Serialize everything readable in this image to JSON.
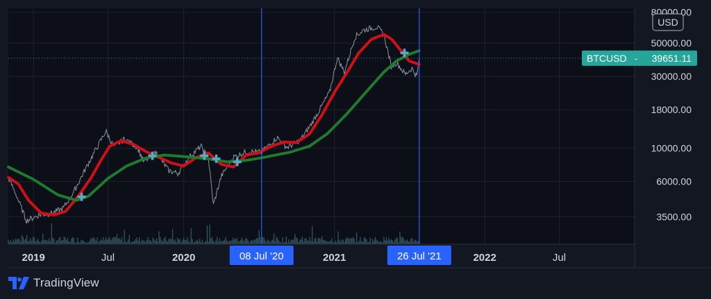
{
  "chart_data": {
    "type": "line",
    "y_scale": "log",
    "currency_label": "USD",
    "symbol": "BTCUSD",
    "last_price": 39651.11,
    "last_price_label": "39651.11",
    "ylim": [
      2300,
      85000
    ],
    "xlim": [
      "2018-11-01",
      "2022-12-31"
    ],
    "y_ticks": [
      {
        "value": 80000,
        "label": "80000.00"
      },
      {
        "value": 50000,
        "label": "50000.00"
      },
      {
        "value": 30000,
        "label": "30000.00"
      },
      {
        "value": 18000,
        "label": "18000.00"
      },
      {
        "value": 10000,
        "label": "10000.00"
      },
      {
        "value": 6000,
        "label": "6000.00"
      },
      {
        "value": 3500,
        "label": "3500.00"
      }
    ],
    "x_ticks": [
      {
        "date": "2019-01-01",
        "label": "2019",
        "bold": true
      },
      {
        "date": "2019-07-01",
        "label": "Jul",
        "bold": false
      },
      {
        "date": "2020-01-01",
        "label": "2020",
        "bold": true
      },
      {
        "date": "2021-01-01",
        "label": "2021",
        "bold": true
      },
      {
        "date": "2022-01-01",
        "label": "2022",
        "bold": true
      },
      {
        "date": "2022-07-01",
        "label": "Jul",
        "bold": false
      }
    ],
    "crosshair_lines": [
      {
        "date": "2020-07-08",
        "label": "08 Jul '20"
      },
      {
        "date": "2021-07-26",
        "label": "26 Jul '21"
      }
    ],
    "series": [
      {
        "kind": "price",
        "color": "#9aa3b0",
        "points": [
          [
            "2018-11-01",
            6400
          ],
          [
            "2018-11-20",
            4900
          ],
          [
            "2018-12-15",
            3300
          ],
          [
            "2019-01-15",
            3600
          ],
          [
            "2019-02-15",
            3700
          ],
          [
            "2019-03-15",
            4000
          ],
          [
            "2019-04-10",
            5200
          ],
          [
            "2019-05-15",
            8000
          ],
          [
            "2019-06-26",
            13000
          ],
          [
            "2019-07-15",
            10200
          ],
          [
            "2019-08-10",
            11500
          ],
          [
            "2019-09-10",
            10200
          ],
          [
            "2019-09-26",
            8100
          ],
          [
            "2019-10-26",
            9400
          ],
          [
            "2019-11-25",
            7100
          ],
          [
            "2019-12-18",
            6800
          ],
          [
            "2020-01-15",
            8800
          ],
          [
            "2020-02-12",
            10300
          ],
          [
            "2020-03-01",
            8500
          ],
          [
            "2020-03-13",
            4200
          ],
          [
            "2020-04-01",
            6500
          ],
          [
            "2020-04-30",
            8700
          ],
          [
            "2020-06-01",
            9500
          ],
          [
            "2020-07-08",
            9400
          ],
          [
            "2020-08-15",
            11800
          ],
          [
            "2020-09-08",
            10100
          ],
          [
            "2020-10-10",
            11300
          ],
          [
            "2020-11-01",
            13800
          ],
          [
            "2020-12-01",
            19000
          ],
          [
            "2020-12-20",
            23500
          ],
          [
            "2021-01-08",
            40000
          ],
          [
            "2021-01-25",
            32000
          ],
          [
            "2021-02-20",
            55000
          ],
          [
            "2021-03-13",
            61000
          ],
          [
            "2021-04-14",
            64000
          ],
          [
            "2021-05-01",
            57000
          ],
          [
            "2021-05-19",
            35000
          ],
          [
            "2021-06-01",
            37000
          ],
          [
            "2021-06-22",
            31000
          ],
          [
            "2021-07-08",
            34000
          ],
          [
            "2021-07-20",
            30000
          ],
          [
            "2021-07-26",
            39651
          ]
        ]
      },
      {
        "kind": "fast_ma",
        "color": "#d10f17",
        "points": [
          [
            "2018-11-01",
            6400
          ],
          [
            "2018-11-25",
            5800
          ],
          [
            "2018-12-20",
            4500
          ],
          [
            "2019-01-20",
            3700
          ],
          [
            "2019-02-20",
            3600
          ],
          [
            "2019-03-20",
            3800
          ],
          [
            "2019-04-20",
            4800
          ],
          [
            "2019-05-20",
            6300
          ],
          [
            "2019-06-15",
            8400
          ],
          [
            "2019-07-05",
            10300
          ],
          [
            "2019-08-01",
            11200
          ],
          [
            "2019-09-01",
            10600
          ],
          [
            "2019-10-01",
            9500
          ],
          [
            "2019-11-01",
            8700
          ],
          [
            "2019-12-01",
            8000
          ],
          [
            "2020-01-01",
            7600
          ],
          [
            "2020-02-01",
            8700
          ],
          [
            "2020-03-01",
            9300
          ],
          [
            "2020-04-01",
            7800
          ],
          [
            "2020-05-01",
            7500
          ],
          [
            "2020-06-01",
            9000
          ],
          [
            "2020-07-01",
            9300
          ],
          [
            "2020-08-01",
            10300
          ],
          [
            "2020-09-01",
            11000
          ],
          [
            "2020-10-01",
            10900
          ],
          [
            "2020-11-01",
            12400
          ],
          [
            "2020-12-01",
            16500
          ],
          [
            "2021-01-01",
            23500
          ],
          [
            "2021-02-01",
            32000
          ],
          [
            "2021-03-01",
            43000
          ],
          [
            "2021-04-01",
            53000
          ],
          [
            "2021-05-01",
            57000
          ],
          [
            "2021-05-20",
            53000
          ],
          [
            "2021-06-10",
            45000
          ],
          [
            "2021-07-01",
            38000
          ],
          [
            "2021-07-26",
            36000
          ]
        ]
      },
      {
        "kind": "slow_ma",
        "color": "#1f7a2e",
        "points": [
          [
            "2018-11-01",
            7500
          ],
          [
            "2019-01-01",
            6200
          ],
          [
            "2019-03-01",
            4900
          ],
          [
            "2019-04-15",
            4500
          ],
          [
            "2019-05-15",
            4800
          ],
          [
            "2019-07-01",
            6300
          ],
          [
            "2019-08-15",
            7600
          ],
          [
            "2019-10-01",
            8600
          ],
          [
            "2019-11-15",
            9000
          ],
          [
            "2020-01-01",
            8800
          ],
          [
            "2020-03-01",
            8500
          ],
          [
            "2020-04-15",
            8100
          ],
          [
            "2020-06-01",
            8300
          ],
          [
            "2020-07-15",
            8700
          ],
          [
            "2020-09-15",
            9400
          ],
          [
            "2020-11-01",
            10300
          ],
          [
            "2020-12-15",
            12500
          ],
          [
            "2021-02-01",
            17000
          ],
          [
            "2021-03-15",
            23000
          ],
          [
            "2021-05-01",
            32000
          ],
          [
            "2021-06-01",
            38000
          ],
          [
            "2021-07-01",
            42000
          ],
          [
            "2021-07-26",
            44500
          ]
        ]
      }
    ],
    "crossover_markers": [
      {
        "date": "2019-04-28",
        "value": 4750
      },
      {
        "date": "2019-10-17",
        "value": 8900
      },
      {
        "date": "2020-02-20",
        "value": 8900
      },
      {
        "date": "2020-03-20",
        "value": 8500
      },
      {
        "date": "2020-05-10",
        "value": 8100
      },
      {
        "date": "2021-06-20",
        "value": 43000
      }
    ],
    "volume": {
      "color": "#3a6a78",
      "baseline_y_value": 2300
    }
  },
  "branding": {
    "name": "TradingView",
    "logo_icon": "tradingview-logo-icon"
  }
}
